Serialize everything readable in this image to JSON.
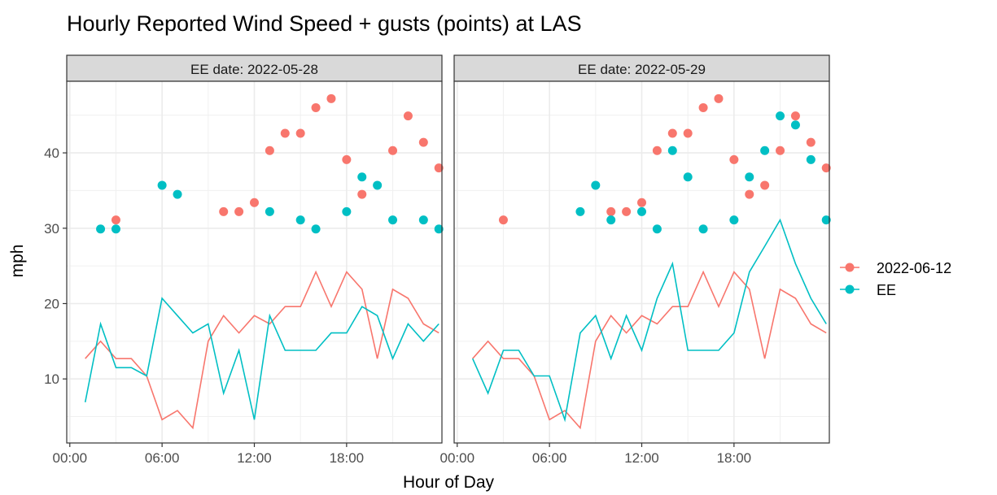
{
  "chart_data": {
    "type": "line",
    "title": "Hourly Reported Wind Speed + gusts (points) at LAS",
    "xlabel": "Hour of Day",
    "ylabel": "mph",
    "x_ticks": [
      "00:00",
      "06:00",
      "12:00",
      "18:00"
    ],
    "y_ticks": [
      10,
      20,
      30,
      40
    ],
    "xlim_hours": [
      -0.2,
      24.2
    ],
    "ylim": [
      1.5,
      49.5
    ],
    "grid": true,
    "legend_position": "right",
    "colors": {
      "2022-06-12": "#F8766D",
      "EE": "#00BFC4"
    },
    "legend": [
      "2022-06-12",
      "EE"
    ],
    "facets": [
      {
        "label": "EE date: 2022-05-28",
        "series": [
          {
            "name": "2022-06-12",
            "wind": [
              [
                1,
                12.7
              ],
              [
                2,
                15
              ],
              [
                3,
                12.7
              ],
              [
                4,
                12.7
              ],
              [
                5,
                10.4
              ],
              [
                6,
                4.6
              ],
              [
                7,
                5.8
              ],
              [
                8,
                3.5
              ],
              [
                9,
                15
              ],
              [
                10,
                18.4
              ],
              [
                11,
                16.1
              ],
              [
                12,
                18.4
              ],
              [
                13,
                17.3
              ],
              [
                14,
                19.6
              ],
              [
                15,
                19.6
              ],
              [
                16,
                24.2
              ],
              [
                17,
                19.6
              ],
              [
                18,
                24.2
              ],
              [
                19,
                21.9
              ],
              [
                20,
                12.7
              ],
              [
                21,
                21.9
              ],
              [
                22,
                20.7
              ],
              [
                23,
                17.3
              ],
              [
                24,
                16.1
              ]
            ],
            "gusts": [
              [
                3,
                31.1
              ],
              [
                10,
                32.2
              ],
              [
                11,
                32.2
              ],
              [
                12,
                33.4
              ],
              [
                13,
                40.3
              ],
              [
                14,
                42.6
              ],
              [
                15,
                42.6
              ],
              [
                16,
                46.0
              ],
              [
                17,
                47.2
              ],
              [
                18,
                39.1
              ],
              [
                19,
                34.5
              ],
              [
                21,
                40.3
              ],
              [
                22,
                44.9
              ],
              [
                23,
                41.4
              ],
              [
                24,
                38.0
              ]
            ]
          },
          {
            "name": "EE",
            "wind": [
              [
                1,
                6.9
              ],
              [
                2,
                17.3
              ],
              [
                3,
                11.5
              ],
              [
                4,
                11.5
              ],
              [
                5,
                10.4
              ],
              [
                6,
                20.7
              ],
              [
                7,
                18.4
              ],
              [
                8,
                16.1
              ],
              [
                9,
                17.3
              ],
              [
                10,
                8.1
              ],
              [
                11,
                13.8
              ],
              [
                12,
                4.6
              ],
              [
                13,
                18.4
              ],
              [
                14,
                13.8
              ],
              [
                15,
                13.8
              ],
              [
                16,
                13.8
              ],
              [
                17,
                16.1
              ],
              [
                18,
                16.1
              ],
              [
                19,
                19.6
              ],
              [
                20,
                18.4
              ],
              [
                21,
                12.7
              ],
              [
                22,
                17.3
              ],
              [
                23,
                15
              ],
              [
                24,
                17.3
              ]
            ],
            "gusts": [
              [
                2,
                29.9
              ],
              [
                3,
                29.9
              ],
              [
                6,
                35.7
              ],
              [
                7,
                34.5
              ],
              [
                13,
                32.2
              ],
              [
                15,
                31.1
              ],
              [
                16,
                29.9
              ],
              [
                18,
                32.2
              ],
              [
                19,
                36.8
              ],
              [
                20,
                35.7
              ],
              [
                21,
                31.1
              ],
              [
                23,
                31.1
              ],
              [
                24,
                29.9
              ]
            ]
          }
        ]
      },
      {
        "label": "EE date: 2022-05-29",
        "series": [
          {
            "name": "2022-06-12",
            "wind": [
              [
                1,
                12.7
              ],
              [
                2,
                15
              ],
              [
                3,
                12.7
              ],
              [
                4,
                12.7
              ],
              [
                5,
                10.4
              ],
              [
                6,
                4.6
              ],
              [
                7,
                5.8
              ],
              [
                8,
                3.5
              ],
              [
                9,
                15
              ],
              [
                10,
                18.4
              ],
              [
                11,
                16.1
              ],
              [
                12,
                18.4
              ],
              [
                13,
                17.3
              ],
              [
                14,
                19.6
              ],
              [
                15,
                19.6
              ],
              [
                16,
                24.2
              ],
              [
                17,
                19.6
              ],
              [
                18,
                24.2
              ],
              [
                19,
                21.9
              ],
              [
                20,
                12.7
              ],
              [
                21,
                21.9
              ],
              [
                22,
                20.7
              ],
              [
                23,
                17.3
              ],
              [
                24,
                16.1
              ]
            ],
            "gusts": [
              [
                3,
                31.1
              ],
              [
                10,
                32.2
              ],
              [
                11,
                32.2
              ],
              [
                12,
                33.4
              ],
              [
                13,
                40.3
              ],
              [
                14,
                42.6
              ],
              [
                15,
                42.6
              ],
              [
                16,
                46.0
              ],
              [
                17,
                47.2
              ],
              [
                18,
                39.1
              ],
              [
                19,
                34.5
              ],
              [
                20,
                35.7
              ],
              [
                21,
                40.3
              ],
              [
                22,
                44.9
              ],
              [
                23,
                41.4
              ],
              [
                24,
                38.0
              ]
            ]
          },
          {
            "name": "EE",
            "wind": [
              [
                1,
                12.7
              ],
              [
                2,
                8.1
              ],
              [
                3,
                13.8
              ],
              [
                4,
                13.8
              ],
              [
                5,
                10.4
              ],
              [
                6,
                10.4
              ],
              [
                7,
                4.6
              ],
              [
                8,
                16.1
              ],
              [
                9,
                18.4
              ],
              [
                10,
                12.7
              ],
              [
                11,
                18.4
              ],
              [
                12,
                13.8
              ],
              [
                13,
                20.7
              ],
              [
                14,
                25.3
              ],
              [
                15,
                13.8
              ],
              [
                16,
                13.8
              ],
              [
                17,
                13.8
              ],
              [
                18,
                16.1
              ],
              [
                19,
                24.2
              ],
              [
                20,
                27.6
              ],
              [
                21,
                31.1
              ],
              [
                22,
                25.3
              ],
              [
                23,
                20.7
              ],
              [
                24,
                17.3
              ]
            ],
            "gusts": [
              [
                8,
                32.2
              ],
              [
                9,
                35.7
              ],
              [
                10,
                31.1
              ],
              [
                12,
                32.2
              ],
              [
                13,
                29.9
              ],
              [
                14,
                40.3
              ],
              [
                15,
                36.8
              ],
              [
                16,
                29.9
              ],
              [
                18,
                31.1
              ],
              [
                19,
                36.8
              ],
              [
                20,
                40.3
              ],
              [
                21,
                44.9
              ],
              [
                22,
                43.7
              ],
              [
                23,
                39.1
              ],
              [
                24,
                31.1
              ]
            ]
          }
        ]
      }
    ]
  }
}
